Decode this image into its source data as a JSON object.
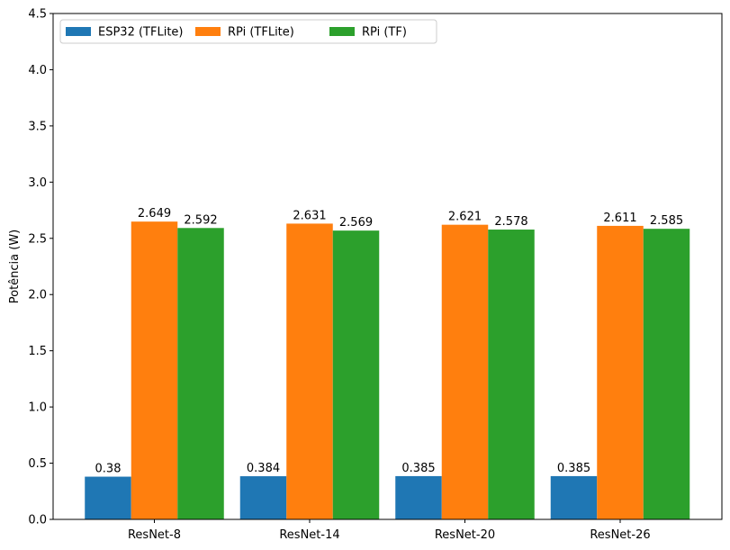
{
  "chart_data": {
    "type": "bar",
    "categories": [
      "ResNet-8",
      "ResNet-14",
      "ResNet-20",
      "ResNet-26"
    ],
    "series": [
      {
        "name": "ESP32 (TFLite)",
        "color": "#1f77b4",
        "values": [
          0.38,
          0.384,
          0.385,
          0.385
        ],
        "labels": [
          "0.38",
          "0.384",
          "0.385",
          "0.385"
        ]
      },
      {
        "name": "RPi (TFLite)",
        "color": "#ff7f0e",
        "values": [
          2.649,
          2.631,
          2.621,
          2.611
        ],
        "labels": [
          "2.649",
          "2.631",
          "2.621",
          "2.611"
        ]
      },
      {
        "name": "RPi (TF)",
        "color": "#2ca02c",
        "values": [
          2.592,
          2.569,
          2.578,
          2.585
        ],
        "labels": [
          "2.592",
          "2.569",
          "2.578",
          "2.585"
        ]
      }
    ],
    "title": "",
    "xlabel": "",
    "ylabel": "Potência (W)",
    "ylim": [
      0,
      4.5
    ],
    "yticks": [
      "0.0",
      "0.5",
      "1.0",
      "1.5",
      "2.0",
      "2.5",
      "3.0",
      "3.5",
      "4.0",
      "4.5"
    ],
    "grid": false,
    "legend_position": "top-left"
  }
}
